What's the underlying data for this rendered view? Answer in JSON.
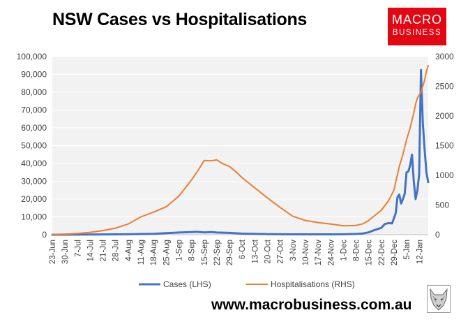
{
  "title": "NSW Cases vs Hospitalisations",
  "logo": {
    "line1": "MACRO",
    "line2": "BUSINESS",
    "color": "#e30613"
  },
  "footer": {
    "url": "www.macrobusiness.com.au"
  },
  "icons": {
    "watermark": "wolf-icon"
  },
  "chart_data": {
    "type": "line",
    "title": "NSW Cases vs Hospitalisations",
    "x_type": "date",
    "x_start": "2021-06-23",
    "x_end": "2022-01-17",
    "x_ticks": [
      "23-Jun",
      "30-Jun",
      "7-Jul",
      "14-Jul",
      "21-Jul",
      "28-Jul",
      "4-Aug",
      "11-Aug",
      "18-Aug",
      "25-Aug",
      "1-Sep",
      "8-Sep",
      "15-Sep",
      "22-Sep",
      "29-Sep",
      "6-Oct",
      "13-Oct",
      "20-Oct",
      "27-Oct",
      "3-Nov",
      "10-Nov",
      "17-Nov",
      "24-Nov",
      "1-Dec",
      "8-Dec",
      "15-Dec",
      "22-Dec",
      "29-Dec",
      "5-Jan",
      "12-Jan"
    ],
    "y_left": {
      "min": 0,
      "max": 100000,
      "step": 10000,
      "ticks": [
        "0",
        "10,000",
        "20,000",
        "30,000",
        "40,000",
        "50,000",
        "60,000",
        "70,000",
        "80,000",
        "90,000",
        "100,000"
      ]
    },
    "y_right": {
      "min": 0,
      "max": 3000,
      "step": 500,
      "ticks": [
        "0",
        "500",
        "1000",
        "1500",
        "2000",
        "2500",
        "3000"
      ]
    },
    "gridlines": true,
    "legend_position": "bottom",
    "background": "#f2f2f2",
    "series": [
      {
        "name": "Cases (LHS)",
        "axis": "left",
        "color": "#4472c4",
        "points": [
          [
            "2021-06-23",
            10
          ],
          [
            "2021-07-07",
            30
          ],
          [
            "2021-07-21",
            150
          ],
          [
            "2021-08-04",
            250
          ],
          [
            "2021-08-18",
            500
          ],
          [
            "2021-08-25",
            900
          ],
          [
            "2021-09-01",
            1200
          ],
          [
            "2021-09-08",
            1500
          ],
          [
            "2021-09-11",
            1600
          ],
          [
            "2021-09-15",
            1300
          ],
          [
            "2021-09-19",
            1500
          ],
          [
            "2021-09-22",
            1200
          ],
          [
            "2021-09-29",
            1000
          ],
          [
            "2021-10-06",
            600
          ],
          [
            "2021-10-13",
            450
          ],
          [
            "2021-10-20",
            300
          ],
          [
            "2021-10-27",
            250
          ],
          [
            "2021-11-03",
            200
          ],
          [
            "2021-11-10",
            200
          ],
          [
            "2021-11-17",
            180
          ],
          [
            "2021-11-24",
            200
          ],
          [
            "2021-12-01",
            250
          ],
          [
            "2021-12-08",
            400
          ],
          [
            "2021-12-12",
            700
          ],
          [
            "2021-12-15",
            1300
          ],
          [
            "2021-12-18",
            2500
          ],
          [
            "2021-12-22",
            3800
          ],
          [
            "2021-12-24",
            6000
          ],
          [
            "2021-12-26",
            6500
          ],
          [
            "2021-12-28",
            6300
          ],
          [
            "2021-12-30",
            12000
          ],
          [
            "2021-12-31",
            21000
          ],
          [
            "2022-01-01",
            22500
          ],
          [
            "2022-01-02",
            17500
          ],
          [
            "2022-01-03",
            20000
          ],
          [
            "2022-01-04",
            23000
          ],
          [
            "2022-01-05",
            35000
          ],
          [
            "2022-01-06",
            35500
          ],
          [
            "2022-01-07",
            39000
          ],
          [
            "2022-01-08",
            45000
          ],
          [
            "2022-01-09",
            30000
          ],
          [
            "2022-01-10",
            20000
          ],
          [
            "2022-01-11",
            25000
          ],
          [
            "2022-01-12",
            34000
          ],
          [
            "2022-01-13",
            92500
          ],
          [
            "2022-01-14",
            63000
          ],
          [
            "2022-01-15",
            48000
          ],
          [
            "2022-01-16",
            35000
          ],
          [
            "2022-01-17",
            29500
          ]
        ]
      },
      {
        "name": "Hospitalisations (RHS)",
        "axis": "right",
        "color": "#ed7d31",
        "points": [
          [
            "2021-06-23",
            3
          ],
          [
            "2021-06-30",
            8
          ],
          [
            "2021-07-07",
            20
          ],
          [
            "2021-07-14",
            40
          ],
          [
            "2021-07-21",
            70
          ],
          [
            "2021-07-28",
            110
          ],
          [
            "2021-08-04",
            180
          ],
          [
            "2021-08-11",
            300
          ],
          [
            "2021-08-18",
            380
          ],
          [
            "2021-08-25",
            470
          ],
          [
            "2021-09-01",
            650
          ],
          [
            "2021-09-08",
            920
          ],
          [
            "2021-09-12",
            1100
          ],
          [
            "2021-09-15",
            1250
          ],
          [
            "2021-09-19",
            1245
          ],
          [
            "2021-09-22",
            1260
          ],
          [
            "2021-09-25",
            1200
          ],
          [
            "2021-09-29",
            1150
          ],
          [
            "2021-10-03",
            1050
          ],
          [
            "2021-10-06",
            960
          ],
          [
            "2021-10-13",
            790
          ],
          [
            "2021-10-20",
            620
          ],
          [
            "2021-10-27",
            460
          ],
          [
            "2021-11-03",
            310
          ],
          [
            "2021-11-10",
            240
          ],
          [
            "2021-11-17",
            205
          ],
          [
            "2021-11-24",
            180
          ],
          [
            "2021-12-01",
            150
          ],
          [
            "2021-12-08",
            155
          ],
          [
            "2021-12-12",
            185
          ],
          [
            "2021-12-15",
            240
          ],
          [
            "2021-12-22",
            410
          ],
          [
            "2021-12-26",
            570
          ],
          [
            "2021-12-29",
            750
          ],
          [
            "2022-01-01",
            1150
          ],
          [
            "2022-01-03",
            1350
          ],
          [
            "2022-01-05",
            1600
          ],
          [
            "2022-01-07",
            1800
          ],
          [
            "2022-01-09",
            2050
          ],
          [
            "2022-01-10",
            2200
          ],
          [
            "2022-01-11",
            2300
          ],
          [
            "2022-01-12",
            2350
          ],
          [
            "2022-01-13",
            2400
          ],
          [
            "2022-01-14",
            2500
          ],
          [
            "2022-01-15",
            2600
          ],
          [
            "2022-01-16",
            2750
          ],
          [
            "2022-01-17",
            2850
          ]
        ]
      }
    ]
  }
}
